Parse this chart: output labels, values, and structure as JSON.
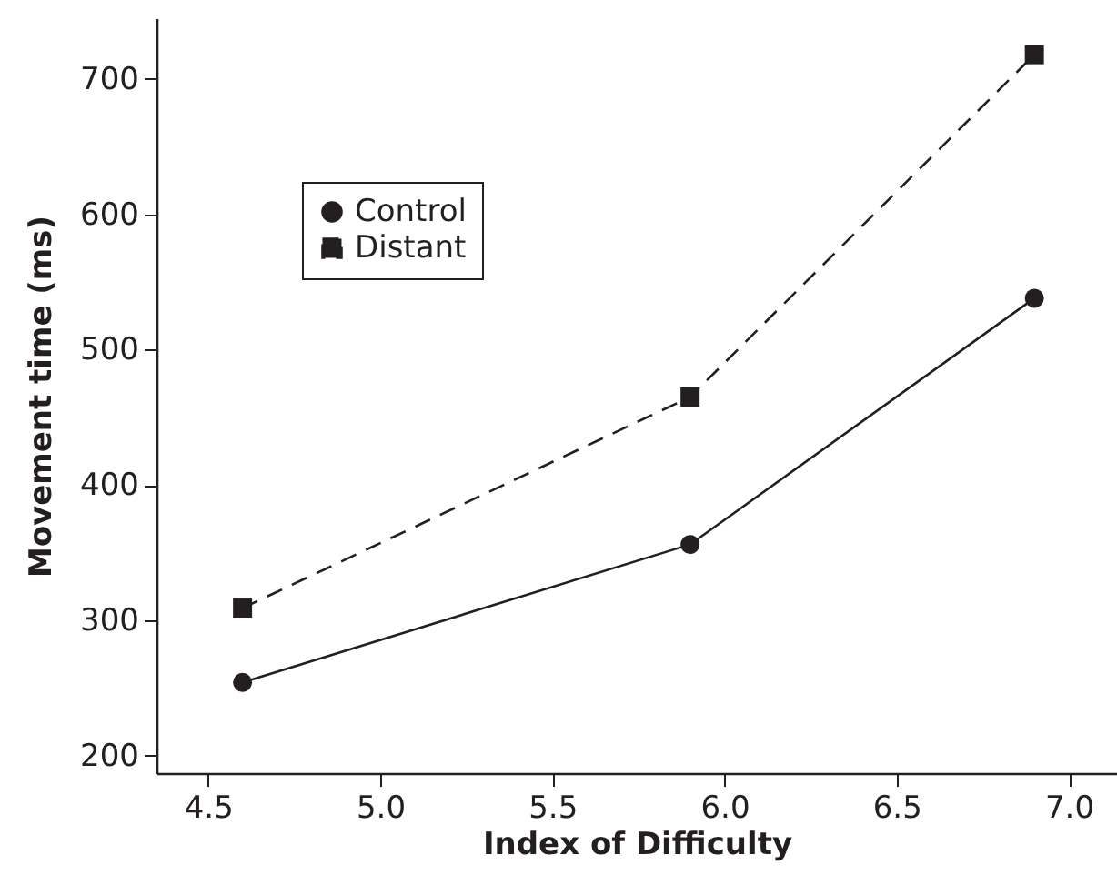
{
  "chart_data": {
    "type": "line",
    "xlabel": "Index of Difficulty",
    "ylabel": "Movement time (ms)",
    "xlim": [
      4.35,
      7.14
    ],
    "xticks": [
      4.5,
      {
        "value": 5,
        "label": "5.0"
      },
      5.5,
      {
        "value": 6,
        "label": "6.0"
      },
      6.5,
      {
        "value": 7,
        "label": "7.0"
      }
    ],
    "ylim": [
      187,
      745
    ],
    "yticks": [
      200,
      300,
      400,
      500,
      600,
      700
    ],
    "grid": false,
    "legend": "top left",
    "series": [
      {
        "name": "Control",
        "color": "#231f20",
        "x": [
          4.6,
          5.9,
          6.9
        ],
        "values": [
          254,
          356,
          538
        ],
        "marker": "circle",
        "line_style": "solid"
      },
      {
        "name": "Distant",
        "color": "#231f20",
        "x": [
          4.6,
          5.9,
          6.9
        ],
        "values": [
          309,
          465,
          718
        ],
        "marker": "square",
        "line_style": "dashed"
      }
    ]
  }
}
